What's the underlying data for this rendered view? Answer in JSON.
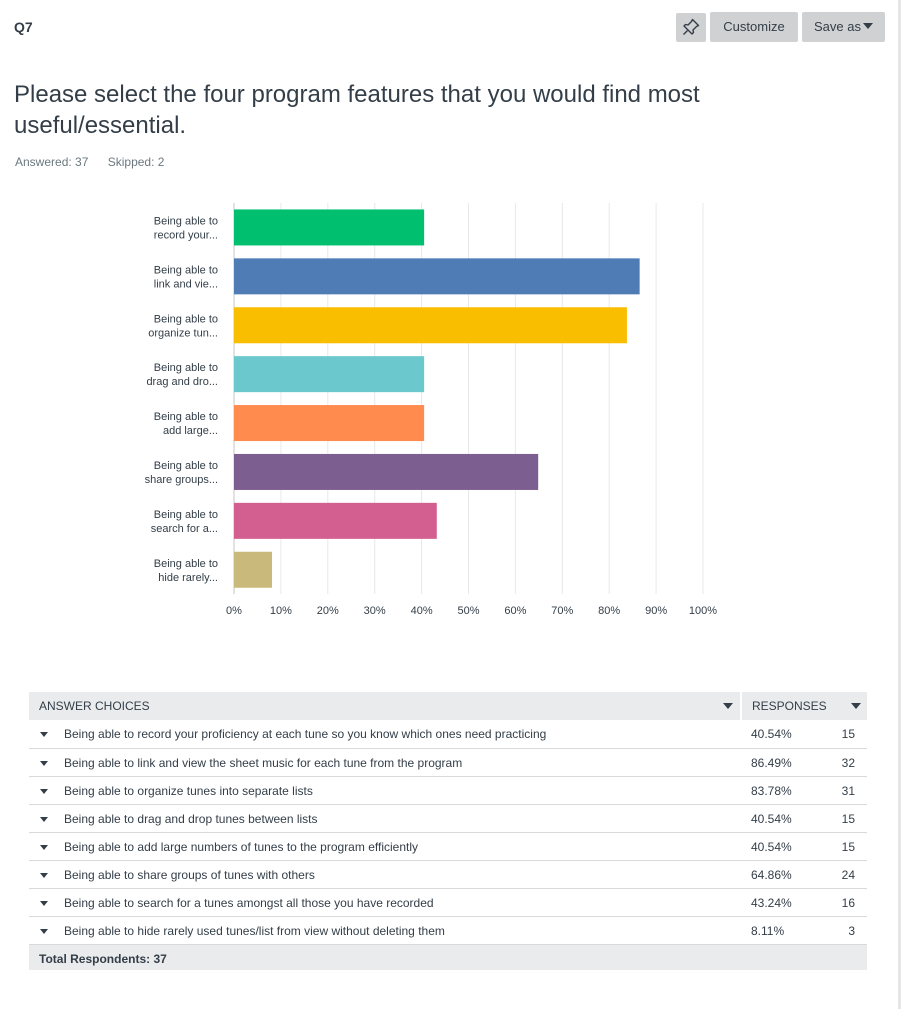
{
  "header": {
    "question_number": "Q7",
    "customize_label": "Customize",
    "save_as_label": "Save as"
  },
  "question": {
    "title": "Please select the four program features that you would find most useful/essential.",
    "answered": "Answered: 37",
    "skipped": "Skipped: 2"
  },
  "chart_data": {
    "type": "bar",
    "orientation": "horizontal",
    "categories": [
      [
        "Being able to",
        "record your..."
      ],
      [
        "Being able to",
        "link and vie..."
      ],
      [
        "Being able to",
        "organize tun..."
      ],
      [
        "Being able to",
        "drag and dro..."
      ],
      [
        "Being able to",
        "add large..."
      ],
      [
        "Being able to",
        "share groups..."
      ],
      [
        "Being able to",
        "search for a..."
      ],
      [
        "Being able to",
        "hide rarely..."
      ]
    ],
    "values": [
      40.54,
      86.49,
      83.78,
      40.54,
      40.54,
      64.86,
      43.24,
      8.11
    ],
    "colors": [
      "#00bf6f",
      "#507cb6",
      "#f9be00",
      "#6bc8cd",
      "#ff8b4f",
      "#7d5e90",
      "#d25f90",
      "#c9b97a"
    ],
    "xlim": [
      0,
      100
    ],
    "xticks": [
      "0%",
      "10%",
      "20%",
      "30%",
      "40%",
      "50%",
      "60%",
      "70%",
      "80%",
      "90%",
      "100%"
    ],
    "grid": true,
    "title": "",
    "xlabel": "",
    "ylabel": ""
  },
  "table": {
    "header_choices": "ANSWER CHOICES",
    "header_responses": "RESPONSES",
    "rows": [
      {
        "choice": "Being able to record your proficiency at each tune so you know which ones need practicing",
        "percent": "40.54%",
        "count": "15"
      },
      {
        "choice": "Being able to link and view the sheet music for each tune from the program",
        "percent": "86.49%",
        "count": "32"
      },
      {
        "choice": "Being able to organize tunes into separate lists",
        "percent": "83.78%",
        "count": "31"
      },
      {
        "choice": "Being able to drag and drop tunes between lists",
        "percent": "40.54%",
        "count": "15"
      },
      {
        "choice": "Being able to add large numbers of tunes to the program efficiently",
        "percent": "40.54%",
        "count": "15"
      },
      {
        "choice": "Being able to share groups of tunes with others",
        "percent": "64.86%",
        "count": "24"
      },
      {
        "choice": "Being able to search for a tunes amongst all those you have recorded",
        "percent": "43.24%",
        "count": "16"
      },
      {
        "choice": "Being able to hide rarely used tunes/list from view without deleting them",
        "percent": "8.11%",
        "count": "3"
      }
    ],
    "total_label": "Total Respondents: 37"
  },
  "icons": {
    "pin": "pin-icon",
    "caret": "caret-down-icon"
  }
}
